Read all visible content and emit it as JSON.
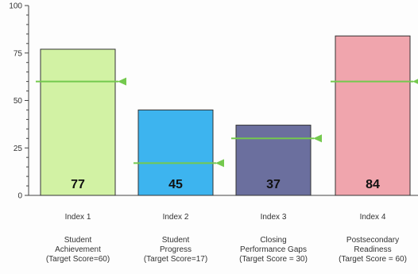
{
  "chart_data": {
    "type": "bar",
    "title": "",
    "xlabel": "",
    "ylabel": "",
    "ylim": [
      0,
      100
    ],
    "yticks": [
      "0",
      "25",
      "50",
      "75",
      "100"
    ],
    "grid": false,
    "categories": [
      "Index 1",
      "Index 2",
      "Index 3",
      "Index 4"
    ],
    "descriptions": [
      [
        "Student",
        "Achievement",
        "(Target Score=60)"
      ],
      [
        "Student",
        "Progress",
        "(Target Score=17)"
      ],
      [
        "Closing",
        "Performance Gaps",
        "(Target Score = 30)"
      ],
      [
        "Postsecondary",
        "Readiness",
        "(Target Score = 60)"
      ]
    ],
    "values": [
      77,
      45,
      37,
      84
    ],
    "value_labels": [
      "77",
      "45",
      "37",
      "84"
    ],
    "targets": [
      60,
      17,
      30,
      60
    ],
    "bar_colors": [
      "#d2f2a4",
      "#3db4ef",
      "#6b6f9e",
      "#f0a5ad"
    ],
    "target_color": "#74c94e"
  }
}
